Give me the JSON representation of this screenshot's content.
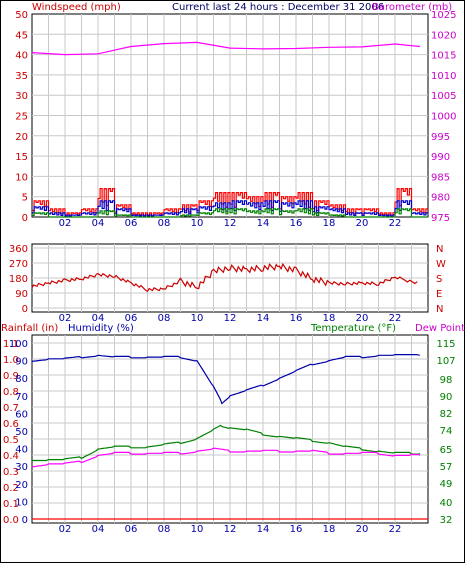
{
  "header": {
    "left_title": "Windspeed (mph)",
    "center_title": "Current last 24 hours : December 31 2006",
    "right_title": "Barometer (mb)"
  },
  "colors": {
    "windspeed": "#ff0000",
    "gust": "#ff0000",
    "wind_avg": "#0000cc",
    "wind_low": "#008000",
    "barometer": "#ff00ff",
    "direction": "#cc0000",
    "humidity": "#0000aa",
    "temperature": "#008000",
    "dew_point": "#ff00ff",
    "rainfall": "#ff0000",
    "grid": "#c8c8c8"
  },
  "chart_data": [
    {
      "type": "line",
      "title": "Current last 24 hours : December 31 2006",
      "x_ticks": [
        "02",
        "04",
        "06",
        "08",
        "10",
        "12",
        "14",
        "16",
        "18",
        "20",
        "22"
      ],
      "x_range_hours": [
        0,
        24
      ],
      "grid": true,
      "left_axis": {
        "label": "Windspeed (mph)",
        "ylim": [
          0,
          50
        ],
        "ticks": [
          "0",
          "5",
          "10",
          "15",
          "20",
          "25",
          "30",
          "35",
          "40",
          "45",
          "50"
        ]
      },
      "right_axis": {
        "label": "Barometer (mb)",
        "ylim": [
          975,
          1025
        ],
        "ticks": [
          "975",
          "980",
          "985",
          "990",
          "995",
          "1000",
          "1005",
          "1010",
          "1015",
          "1020",
          "1025"
        ]
      },
      "series": [
        {
          "name": "Barometer (mb)",
          "axis": "right",
          "x": [
            0,
            2,
            4,
            6,
            8,
            10,
            12,
            14,
            16,
            18,
            20,
            22,
            23.5
          ],
          "values": [
            1015.5,
            1015,
            1015.2,
            1017,
            1017.7,
            1018,
            1016.6,
            1016.4,
            1016.5,
            1016.8,
            1016.9,
            1017.6,
            1017
          ]
        },
        {
          "axis": "left",
          "x": [
            0,
            1,
            2,
            3,
            4,
            5,
            6,
            7,
            8,
            9,
            10,
            11,
            12,
            13,
            14,
            15,
            16,
            17,
            18,
            19,
            20,
            21,
            22,
            23
          ],
          "values": [
            4,
            2,
            1,
            2,
            7,
            3,
            1,
            1,
            2,
            3,
            4,
            6,
            6,
            5,
            6,
            5,
            6,
            4,
            3,
            2,
            2,
            1,
            7,
            2
          ]
        },
        {
          "axis": "left",
          "x": [
            0,
            1,
            2,
            3,
            4,
            5,
            6,
            7,
            8,
            9,
            10,
            11,
            12,
            13,
            14,
            15,
            16,
            17,
            18,
            19,
            20,
            21,
            22,
            23
          ],
          "values": [
            2.5,
            1,
            0.5,
            1,
            4,
            2,
            0.5,
            0.5,
            1,
            2,
            2.5,
            3.5,
            4,
            3.5,
            4,
            3.5,
            4,
            2.5,
            2,
            1,
            1,
            0.5,
            4,
            1
          ]
        },
        {
          "axis": "left",
          "x": [
            0,
            1,
            2,
            3,
            4,
            5,
            6,
            7,
            8,
            9,
            10,
            11,
            12,
            13,
            14,
            15,
            16,
            17,
            18,
            19,
            20,
            21,
            22,
            23
          ],
          "values": [
            1,
            0,
            0,
            0,
            1.5,
            0.5,
            0,
            0,
            0,
            0.5,
            1,
            2,
            2,
            1.5,
            2,
            1.5,
            2,
            1,
            0.5,
            0,
            0,
            0,
            2,
            0
          ]
        }
      ]
    },
    {
      "type": "line",
      "x_ticks": [
        "02",
        "04",
        "06",
        "08",
        "10",
        "12",
        "14",
        "16",
        "18",
        "20",
        "22"
      ],
      "grid": true,
      "left_axis": {
        "ylim": [
          0,
          360
        ],
        "ticks": [
          "0",
          "90",
          "180",
          "270",
          "360"
        ]
      },
      "right_axis": {
        "ticks": [
          "N",
          "E",
          "S",
          "W",
          "N"
        ]
      },
      "series": [
        {
          "axis": "left",
          "x": [
            0,
            1,
            2,
            3,
            4,
            5,
            6,
            7,
            8,
            9,
            10,
            11,
            12,
            13,
            14,
            15,
            16,
            17,
            18,
            19,
            20,
            21,
            22,
            23.5
          ],
          "values": [
            130,
            150,
            165,
            175,
            200,
            190,
            150,
            110,
            115,
            160,
            125,
            220,
            240,
            230,
            240,
            250,
            225,
            175,
            150,
            145,
            150,
            145,
            185,
            145
          ]
        }
      ]
    },
    {
      "type": "line",
      "x_ticks": [
        "02",
        "04",
        "06",
        "08",
        "10",
        "12",
        "14",
        "16",
        "18",
        "20",
        "22"
      ],
      "grid": true,
      "left_axis_rain": {
        "label": "Rainfall (in)",
        "ylim": [
          0.0,
          1.1
        ],
        "ticks": [
          "0.0",
          "0.1",
          "0.2",
          "0.3",
          "0.4",
          "0.5",
          "0.6",
          "0.7",
          "0.8",
          "0.9",
          "1.0",
          "1.1"
        ]
      },
      "left_axis_humidity": {
        "label": "Humidity (%)",
        "ylim": [
          0,
          100
        ],
        "ticks": [
          "0",
          "10",
          "20",
          "30",
          "40",
          "50",
          "60",
          "70",
          "80",
          "90",
          "100"
        ]
      },
      "right_axis": {
        "label": "Temperature (°F)",
        "ylim": [
          32,
          115
        ],
        "ticks": [
          "32",
          "40",
          "49",
          "57",
          "65",
          "74",
          "82",
          "90",
          "98",
          "107",
          "115"
        ]
      },
      "dew_point_label": "Dew Point",
      "series": [
        {
          "name": "Humidity (%)",
          "axis": "humidity",
          "x": [
            0,
            1,
            2,
            3,
            4,
            5,
            6,
            7,
            8,
            9,
            10,
            11,
            11.5,
            12,
            13,
            14,
            15,
            16,
            17,
            18,
            19,
            20,
            21,
            22,
            23.5
          ],
          "values": [
            90,
            91,
            91,
            92,
            93,
            92,
            92,
            92,
            92,
            92,
            90,
            75,
            66,
            70,
            73,
            76,
            80,
            84,
            88,
            90,
            92,
            92,
            93,
            93,
            93
          ]
        },
        {
          "name": "Temperature (°F)",
          "axis": "right",
          "x": [
            0,
            1,
            2,
            3,
            4,
            5,
            6,
            7,
            8,
            9,
            10,
            11,
            11.5,
            12,
            13,
            14,
            15,
            16,
            17,
            18,
            19,
            20,
            21,
            22,
            23,
            23.5
          ],
          "values": [
            60,
            60,
            60,
            61,
            65,
            66,
            66,
            66,
            67,
            68,
            70,
            74,
            76,
            75,
            74,
            72,
            71,
            70,
            69,
            68,
            66,
            65,
            64,
            63,
            63,
            63
          ]
        },
        {
          "name": "Dew Point",
          "axis": "right",
          "x": [
            0,
            1,
            2,
            3,
            4,
            5,
            6,
            7,
            8,
            9,
            10,
            11,
            12,
            13,
            14,
            15,
            16,
            17,
            18,
            19,
            20,
            21,
            22,
            23,
            23.5
          ],
          "values": [
            57,
            58,
            58,
            59,
            62,
            63,
            63,
            63,
            63,
            63,
            64,
            65,
            64,
            64,
            64,
            64,
            64,
            64,
            63,
            63,
            63,
            63,
            62,
            62,
            62
          ]
        },
        {
          "name": "Rainfall (in)",
          "axis": "rain",
          "x": [
            0,
            24
          ],
          "values": [
            0.0,
            0.0
          ]
        }
      ]
    }
  ]
}
